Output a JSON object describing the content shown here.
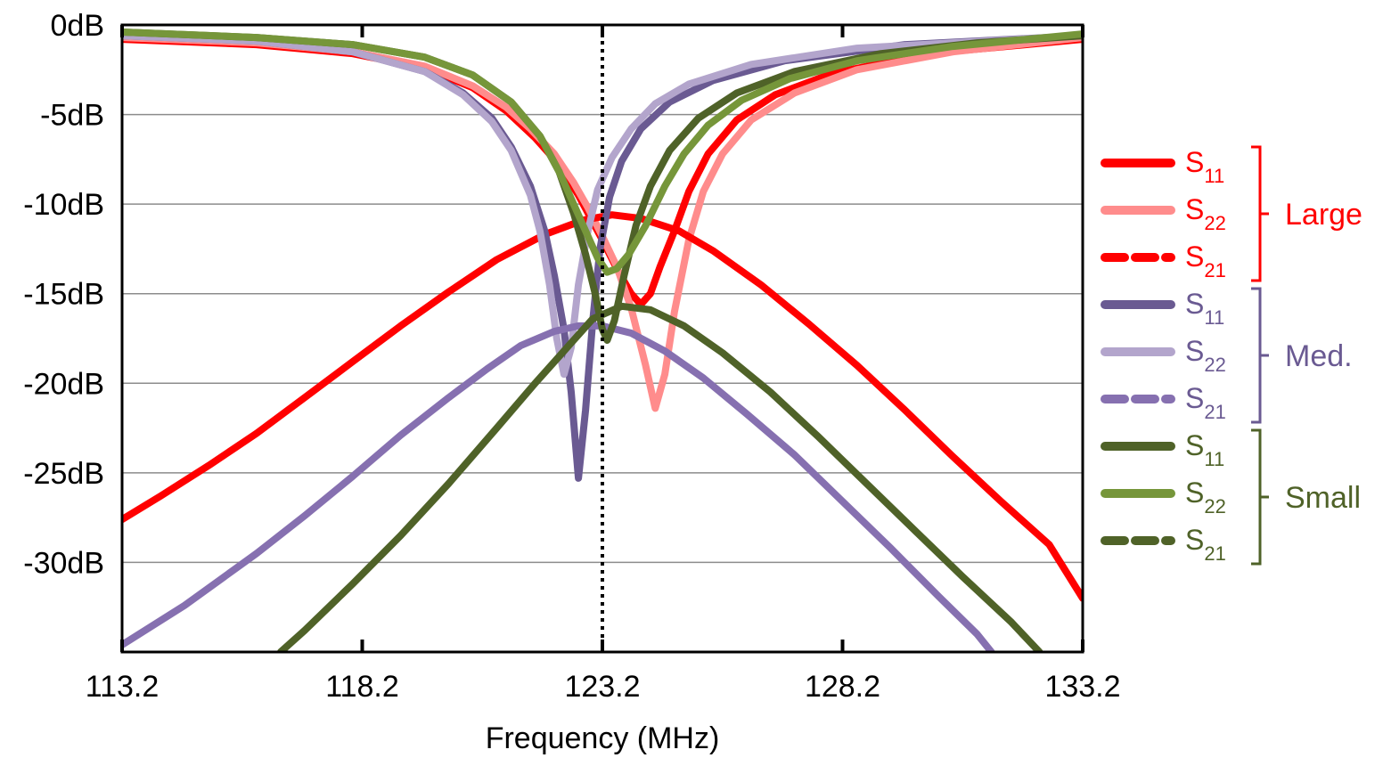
{
  "chart_data": {
    "type": "line",
    "title": "",
    "xlabel": "Frequency (MHz)",
    "ylabel": "",
    "xlim": [
      113.2,
      133.2
    ],
    "ylim": [
      -35,
      0
    ],
    "x_ticks": [
      "113.2",
      "118.2",
      "123.2",
      "128.2",
      "133.2"
    ],
    "y_ticks": [
      "0dB",
      "-5dB",
      "-10dB",
      "-15dB",
      "-20dB",
      "-25dB",
      "-30dB"
    ],
    "grid": true,
    "marker_frequency": 123.2,
    "legend_position": "right",
    "legend_groups": [
      {
        "label": "Large",
        "color": "#ff0000",
        "entries": [
          {
            "base": "S",
            "sub": "11",
            "color": "#ff0000",
            "style": "solid"
          },
          {
            "base": "S",
            "sub": "22",
            "color": "#ff8c8c",
            "style": "solid"
          },
          {
            "base": "S",
            "sub": "21",
            "color": "#ff0000",
            "style": "dashed"
          }
        ]
      },
      {
        "label": "Med.",
        "color": "#6a5a92",
        "entries": [
          {
            "base": "S",
            "sub": "11",
            "color": "#6a5a92",
            "style": "solid"
          },
          {
            "base": "S",
            "sub": "22",
            "color": "#b3a5cc",
            "style": "solid"
          },
          {
            "base": "S",
            "sub": "21",
            "color": "#8670b0",
            "style": "dashed"
          }
        ]
      },
      {
        "label": "Small",
        "color": "#4f6228",
        "entries": [
          {
            "base": "S",
            "sub": "11",
            "color": "#4f6228",
            "style": "solid"
          },
          {
            "base": "S",
            "sub": "22",
            "color": "#76963a",
            "style": "solid"
          },
          {
            "base": "S",
            "sub": "21",
            "color": "#4f6228",
            "style": "dashed"
          }
        ]
      }
    ],
    "series": [
      {
        "name": "Large S11",
        "color": "#ff0000",
        "points": [
          [
            113.2,
            -0.8
          ],
          [
            116.0,
            -1.1
          ],
          [
            118.0,
            -1.6
          ],
          [
            119.5,
            -2.4
          ],
          [
            120.5,
            -3.5
          ],
          [
            121.2,
            -4.8
          ],
          [
            121.8,
            -6.3
          ],
          [
            122.3,
            -7.8
          ],
          [
            122.7,
            -9.5
          ],
          [
            123.0,
            -11.0
          ],
          [
            123.2,
            -12.0
          ],
          [
            123.5,
            -13.6
          ],
          [
            123.8,
            -15.0
          ],
          [
            124.0,
            -15.6
          ],
          [
            124.2,
            -15.0
          ],
          [
            124.4,
            -13.5
          ],
          [
            124.7,
            -11.5
          ],
          [
            125.0,
            -9.3
          ],
          [
            125.4,
            -7.2
          ],
          [
            126.0,
            -5.3
          ],
          [
            126.8,
            -3.9
          ],
          [
            128.0,
            -2.7
          ],
          [
            130.0,
            -1.6
          ],
          [
            133.2,
            -0.8
          ]
        ]
      },
      {
        "name": "Large S22",
        "color": "#ff8c8c",
        "points": [
          [
            113.2,
            -0.7
          ],
          [
            116.0,
            -1.0
          ],
          [
            118.0,
            -1.5
          ],
          [
            119.5,
            -2.3
          ],
          [
            120.5,
            -3.4
          ],
          [
            121.2,
            -4.6
          ],
          [
            121.7,
            -5.8
          ],
          [
            122.2,
            -7.2
          ],
          [
            122.6,
            -8.8
          ],
          [
            122.9,
            -10.2
          ],
          [
            123.2,
            -11.8
          ],
          [
            123.5,
            -13.5
          ],
          [
            123.8,
            -15.8
          ],
          [
            124.1,
            -19.0
          ],
          [
            124.3,
            -21.4
          ],
          [
            124.5,
            -19.5
          ],
          [
            124.7,
            -16.0
          ],
          [
            125.0,
            -12.0
          ],
          [
            125.3,
            -9.3
          ],
          [
            125.7,
            -7.2
          ],
          [
            126.3,
            -5.3
          ],
          [
            127.2,
            -3.8
          ],
          [
            128.5,
            -2.5
          ],
          [
            130.5,
            -1.5
          ],
          [
            133.2,
            -0.7
          ]
        ]
      },
      {
        "name": "Large S21",
        "color": "#ff0000",
        "points": [
          [
            113.2,
            -27.6
          ],
          [
            114.0,
            -26.3
          ],
          [
            115.0,
            -24.6
          ],
          [
            116.0,
            -22.8
          ],
          [
            117.0,
            -20.8
          ],
          [
            118.0,
            -18.8
          ],
          [
            119.0,
            -16.8
          ],
          [
            120.0,
            -14.9
          ],
          [
            121.0,
            -13.1
          ],
          [
            122.0,
            -11.7
          ],
          [
            122.8,
            -10.9
          ],
          [
            123.4,
            -10.6
          ],
          [
            124.0,
            -10.8
          ],
          [
            124.8,
            -11.5
          ],
          [
            125.5,
            -12.6
          ],
          [
            126.5,
            -14.5
          ],
          [
            127.5,
            -16.7
          ],
          [
            128.5,
            -19.0
          ],
          [
            129.5,
            -21.5
          ],
          [
            130.5,
            -24.1
          ],
          [
            131.5,
            -26.6
          ],
          [
            132.5,
            -29.0
          ],
          [
            133.2,
            -32.0
          ]
        ]
      },
      {
        "name": "Med. S11",
        "color": "#6a5a92",
        "points": [
          [
            113.2,
            -0.6
          ],
          [
            116.0,
            -0.9
          ],
          [
            118.0,
            -1.5
          ],
          [
            119.5,
            -2.6
          ],
          [
            120.3,
            -3.8
          ],
          [
            120.9,
            -5.2
          ],
          [
            121.3,
            -6.8
          ],
          [
            121.7,
            -9.0
          ],
          [
            122.0,
            -11.5
          ],
          [
            122.2,
            -14.0
          ],
          [
            122.4,
            -17.0
          ],
          [
            122.55,
            -20.5
          ],
          [
            122.7,
            -25.3
          ],
          [
            122.85,
            -21.5
          ],
          [
            123.0,
            -16.5
          ],
          [
            123.15,
            -12.5
          ],
          [
            123.35,
            -9.6
          ],
          [
            123.6,
            -7.6
          ],
          [
            124.0,
            -5.8
          ],
          [
            124.6,
            -4.3
          ],
          [
            125.5,
            -3.1
          ],
          [
            127.0,
            -2.0
          ],
          [
            129.5,
            -1.1
          ],
          [
            133.2,
            -0.6
          ]
        ]
      },
      {
        "name": "Med. S22",
        "color": "#b3a5cc",
        "points": [
          [
            113.2,
            -0.6
          ],
          [
            116.0,
            -0.9
          ],
          [
            118.0,
            -1.5
          ],
          [
            119.5,
            -2.6
          ],
          [
            120.3,
            -3.9
          ],
          [
            120.9,
            -5.4
          ],
          [
            121.3,
            -7.0
          ],
          [
            121.7,
            -9.5
          ],
          [
            121.9,
            -11.5
          ],
          [
            122.1,
            -14.5
          ],
          [
            122.25,
            -17.5
          ],
          [
            122.4,
            -19.5
          ],
          [
            122.55,
            -18.0
          ],
          [
            122.7,
            -14.5
          ],
          [
            122.9,
            -11.5
          ],
          [
            123.1,
            -9.2
          ],
          [
            123.4,
            -7.4
          ],
          [
            123.8,
            -5.8
          ],
          [
            124.3,
            -4.4
          ],
          [
            125.0,
            -3.3
          ],
          [
            126.3,
            -2.2
          ],
          [
            128.5,
            -1.3
          ],
          [
            133.2,
            -0.6
          ]
        ]
      },
      {
        "name": "Med. S21",
        "color": "#8670b0",
        "points": [
          [
            113.2,
            -34.6
          ],
          [
            114.5,
            -32.4
          ],
          [
            116.0,
            -29.5
          ],
          [
            117.0,
            -27.4
          ],
          [
            118.0,
            -25.2
          ],
          [
            119.0,
            -22.9
          ],
          [
            120.0,
            -20.8
          ],
          [
            120.8,
            -19.2
          ],
          [
            121.5,
            -17.9
          ],
          [
            122.2,
            -17.1
          ],
          [
            122.7,
            -16.8
          ],
          [
            123.2,
            -16.8
          ],
          [
            123.8,
            -17.2
          ],
          [
            124.5,
            -18.2
          ],
          [
            125.3,
            -19.7
          ],
          [
            126.2,
            -21.7
          ],
          [
            127.2,
            -24.0
          ],
          [
            128.2,
            -26.6
          ],
          [
            129.2,
            -29.2
          ],
          [
            130.2,
            -31.9
          ],
          [
            131.0,
            -34.0
          ],
          [
            131.3,
            -35.0
          ]
        ]
      },
      {
        "name": "Small S11",
        "color": "#4f6228",
        "points": [
          [
            113.2,
            -0.4
          ],
          [
            116.0,
            -0.7
          ],
          [
            118.0,
            -1.1
          ],
          [
            119.5,
            -1.8
          ],
          [
            120.5,
            -2.8
          ],
          [
            121.3,
            -4.3
          ],
          [
            121.9,
            -6.2
          ],
          [
            122.3,
            -8.2
          ],
          [
            122.6,
            -10.5
          ],
          [
            122.85,
            -12.8
          ],
          [
            123.05,
            -15.0
          ],
          [
            123.2,
            -17.0
          ],
          [
            123.3,
            -17.6
          ],
          [
            123.45,
            -16.5
          ],
          [
            123.65,
            -14.0
          ],
          [
            123.9,
            -11.2
          ],
          [
            124.2,
            -9.0
          ],
          [
            124.6,
            -7.0
          ],
          [
            125.2,
            -5.2
          ],
          [
            126.0,
            -3.8
          ],
          [
            127.2,
            -2.6
          ],
          [
            129.0,
            -1.6
          ],
          [
            131.0,
            -1.0
          ],
          [
            133.2,
            -0.6
          ]
        ]
      },
      {
        "name": "Small S22",
        "color": "#76963a",
        "points": [
          [
            113.2,
            -0.4
          ],
          [
            116.0,
            -0.7
          ],
          [
            118.0,
            -1.1
          ],
          [
            119.5,
            -1.8
          ],
          [
            120.5,
            -2.8
          ],
          [
            121.3,
            -4.3
          ],
          [
            121.9,
            -6.2
          ],
          [
            122.3,
            -8.2
          ],
          [
            122.6,
            -10.0
          ],
          [
            122.9,
            -11.8
          ],
          [
            123.1,
            -13.0
          ],
          [
            123.3,
            -13.8
          ],
          [
            123.5,
            -13.6
          ],
          [
            123.75,
            -12.8
          ],
          [
            124.1,
            -11.2
          ],
          [
            124.5,
            -9.0
          ],
          [
            124.9,
            -7.2
          ],
          [
            125.4,
            -5.6
          ],
          [
            126.1,
            -4.2
          ],
          [
            127.1,
            -3.0
          ],
          [
            128.5,
            -2.0
          ],
          [
            130.5,
            -1.2
          ],
          [
            133.2,
            -0.5
          ]
        ]
      },
      {
        "name": "Small S21",
        "color": "#4f6228",
        "points": [
          [
            116.5,
            -35.0
          ],
          [
            117.0,
            -33.8
          ],
          [
            118.0,
            -31.2
          ],
          [
            119.0,
            -28.5
          ],
          [
            120.0,
            -25.6
          ],
          [
            121.0,
            -22.5
          ],
          [
            121.8,
            -20.0
          ],
          [
            122.5,
            -17.9
          ],
          [
            123.0,
            -16.4
          ],
          [
            123.6,
            -15.7
          ],
          [
            124.2,
            -15.9
          ],
          [
            124.9,
            -16.8
          ],
          [
            125.7,
            -18.3
          ],
          [
            126.7,
            -20.5
          ],
          [
            127.7,
            -23.0
          ],
          [
            128.7,
            -25.6
          ],
          [
            129.7,
            -28.2
          ],
          [
            130.7,
            -30.8
          ],
          [
            131.7,
            -33.3
          ],
          [
            132.3,
            -35.0
          ]
        ]
      }
    ]
  }
}
